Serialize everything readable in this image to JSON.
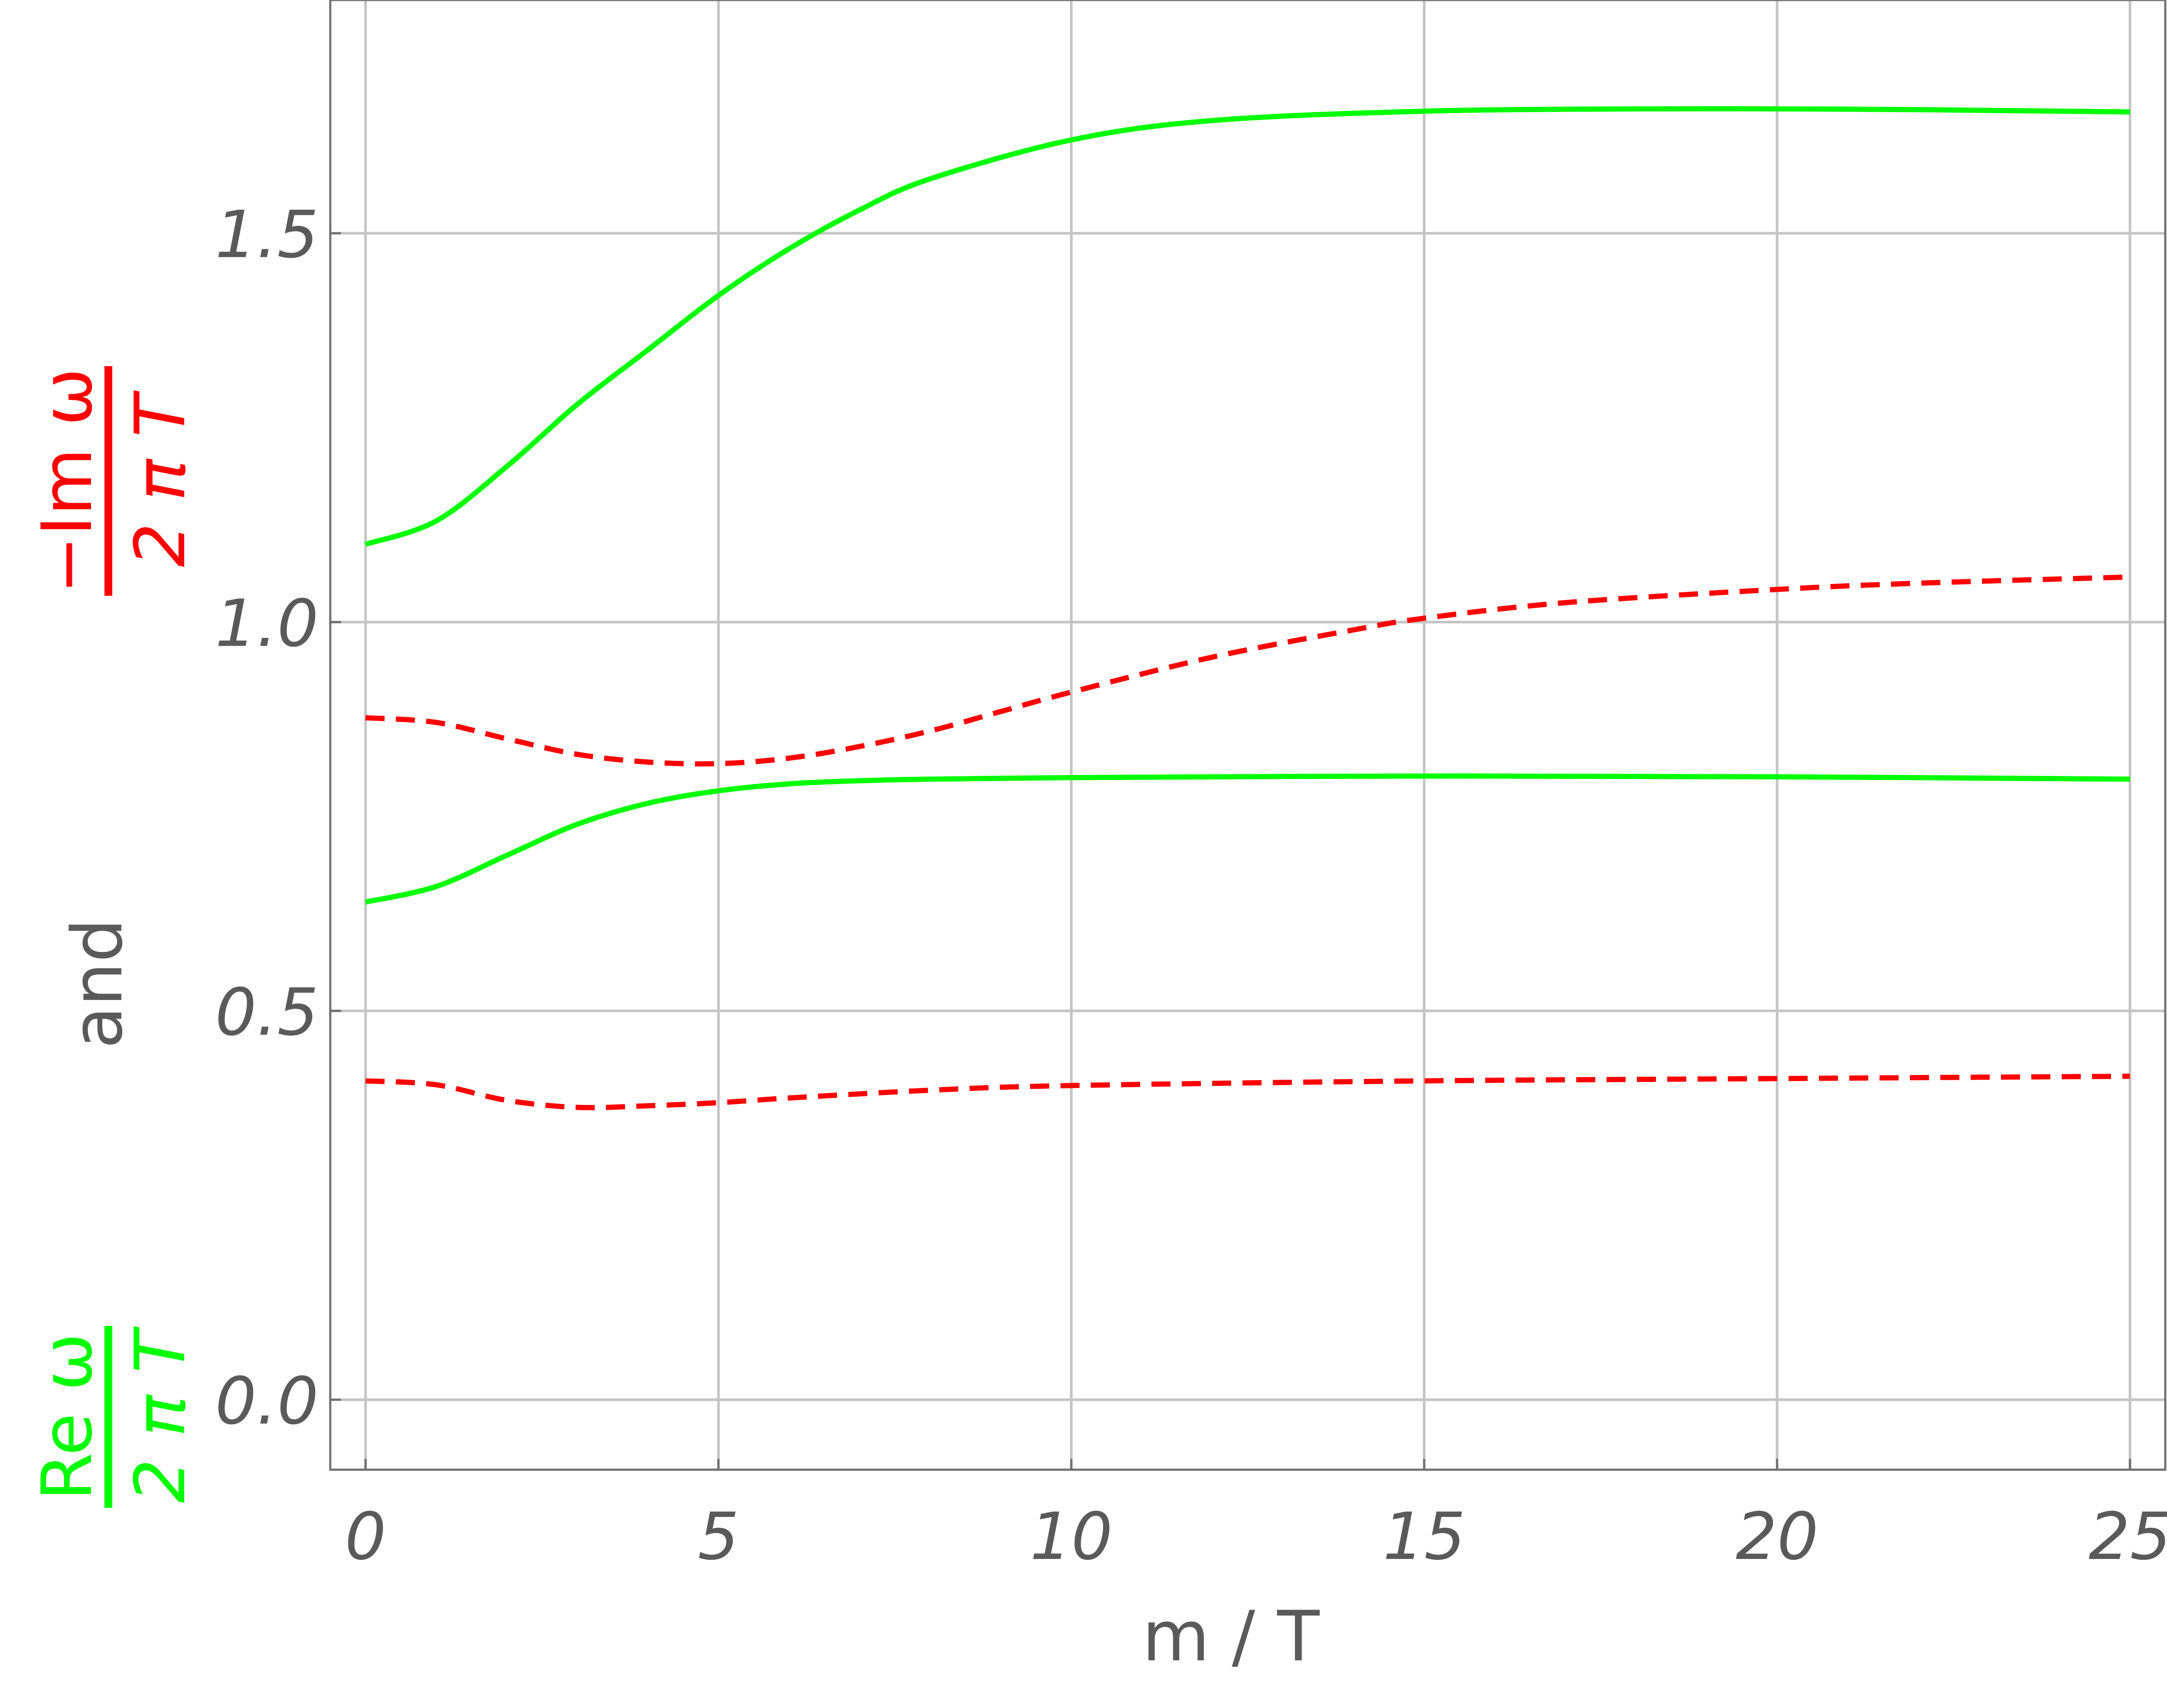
{
  "chart_data": {
    "type": "line",
    "xlabel": "m / T",
    "ylabel": {
      "part1_numerator": "Re ω",
      "part1_denominator": "2 π T",
      "connector": "and",
      "part2_numerator": "−Im ω",
      "part2_denominator": "2 π T"
    },
    "xlim": [
      -0.5,
      25.5
    ],
    "ylim": [
      -0.09,
      1.8
    ],
    "x_ticks": [
      0,
      5,
      10,
      15,
      20,
      25
    ],
    "x_tick_labels": [
      "0",
      "5",
      "10",
      "15",
      "20",
      "25"
    ],
    "y_ticks": [
      0.0,
      0.5,
      1.0,
      1.5
    ],
    "y_tick_labels": [
      "0.0",
      "0.5",
      "1.0",
      "1.5"
    ],
    "grid": true,
    "colors": {
      "re": "#00ff00",
      "im": "#ff0000",
      "grid": "#c4c4c4",
      "text": "#5a5a5a",
      "axis": "#707070"
    },
    "series": [
      {
        "color": "#00ff00",
        "dash": false,
        "x": [
          0,
          1,
          2,
          3,
          4,
          5,
          6,
          7,
          8,
          10,
          12,
          15,
          18,
          20,
          22,
          25
        ],
        "y": [
          1.1,
          1.13,
          1.2,
          1.28,
          1.35,
          1.42,
          1.48,
          1.53,
          1.57,
          1.62,
          1.645,
          1.657,
          1.66,
          1.66,
          1.659,
          1.656
        ]
      },
      {
        "color": "#00ff00",
        "dash": false,
        "x": [
          0,
          1,
          2,
          3,
          4,
          5,
          6,
          7,
          8,
          10,
          15,
          20,
          25
        ],
        "y": [
          0.64,
          0.66,
          0.7,
          0.74,
          0.767,
          0.783,
          0.792,
          0.796,
          0.798,
          0.8,
          0.802,
          0.801,
          0.798
        ]
      },
      {
        "color": "#ff0000",
        "dash": true,
        "x": [
          0,
          1,
          2,
          3,
          4,
          5,
          6,
          7,
          8,
          9,
          10,
          12,
          14,
          15,
          17,
          20,
          22,
          25
        ],
        "y": [
          0.877,
          0.871,
          0.85,
          0.83,
          0.82,
          0.818,
          0.825,
          0.84,
          0.86,
          0.885,
          0.91,
          0.955,
          0.99,
          1.005,
          1.025,
          1.042,
          1.05,
          1.058
        ]
      },
      {
        "color": "#ff0000",
        "dash": true,
        "x": [
          0,
          1,
          2,
          3,
          4,
          5,
          6,
          8,
          10,
          15,
          20,
          25
        ],
        "y": [
          0.41,
          0.405,
          0.385,
          0.376,
          0.378,
          0.382,
          0.388,
          0.398,
          0.404,
          0.41,
          0.413,
          0.416
        ]
      }
    ]
  }
}
